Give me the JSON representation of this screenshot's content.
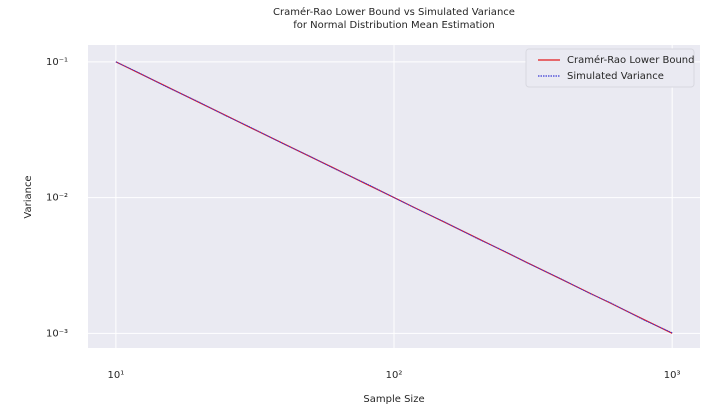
{
  "chart_data": {
    "type": "line",
    "title": [
      "Cramér-Rao Lower Bound vs Simulated Variance",
      "for Normal Distribution Mean Estimation"
    ],
    "xlabel": "Sample Size",
    "ylabel": "Variance",
    "xscale": "log",
    "yscale": "log",
    "grid": true,
    "legend": "upper right",
    "x": [
      10,
      12,
      15,
      20,
      25,
      30,
      40,
      50,
      60,
      80,
      100,
      120,
      150,
      200,
      250,
      300,
      400,
      500,
      600,
      800,
      1000
    ],
    "series": [
      {
        "name": "Cramér-Rao Lower Bound",
        "color": "#e41a1c",
        "style": "solid",
        "values": [
          0.1,
          0.0833,
          0.0667,
          0.05,
          0.04,
          0.0333,
          0.025,
          0.02,
          0.0167,
          0.0125,
          0.01,
          0.00833,
          0.00667,
          0.005,
          0.004,
          0.00333,
          0.0025,
          0.002,
          0.00167,
          0.00125,
          0.001
        ]
      },
      {
        "name": "Simulated Variance",
        "color": "#3b3bd6",
        "style": "dotted",
        "values": [
          0.1,
          0.0838,
          0.0663,
          0.0503,
          0.0398,
          0.0335,
          0.0249,
          0.0201,
          0.0166,
          0.0126,
          0.01,
          0.0083,
          0.0067,
          0.00497,
          0.00402,
          0.00332,
          0.00251,
          0.00199,
          0.00168,
          0.00124,
          0.00101
        ]
      }
    ],
    "xlim": [
      7.94,
      1259
    ],
    "ylim": [
      0.00078,
      0.133
    ],
    "xticks": [
      {
        "value": 10,
        "label": "10¹"
      },
      {
        "value": 100,
        "label": "10²"
      },
      {
        "value": 1000,
        "label": "10³"
      }
    ],
    "yticks": [
      {
        "value": 0.001,
        "label": "10⁻³"
      },
      {
        "value": 0.01,
        "label": "10⁻²"
      },
      {
        "value": 0.1,
        "label": "10⁻¹"
      }
    ]
  }
}
